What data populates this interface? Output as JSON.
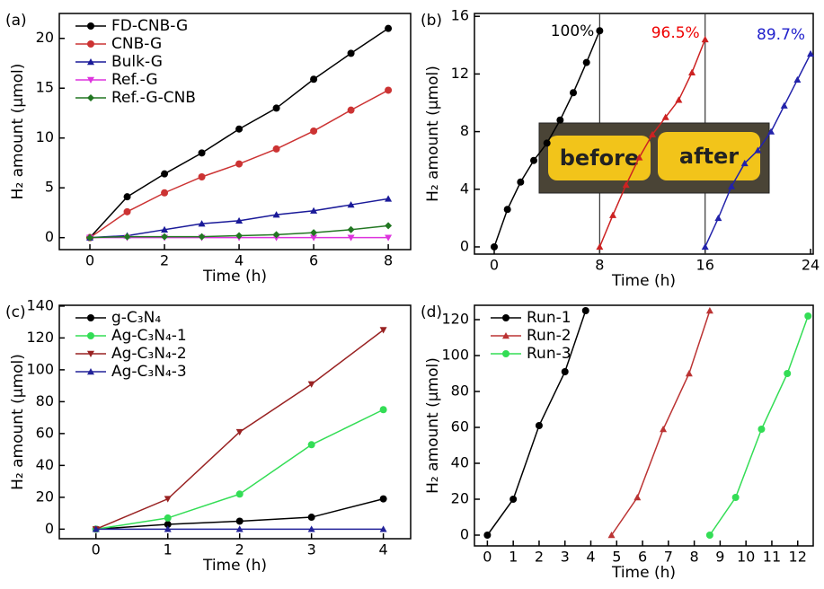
{
  "chart_data": [
    {
      "type": "line",
      "panel_label": "(a)",
      "xlabel": "Time (h)",
      "ylabel": "H₂ amount (μmol)",
      "x": [
        0,
        1,
        2,
        3,
        4,
        5,
        6,
        7,
        8
      ],
      "xlim": [
        -0.82,
        8.6
      ],
      "ylim": [
        -1.2,
        22.5
      ],
      "xticks": [
        0,
        2,
        4,
        6,
        8
      ],
      "yticks": [
        0,
        5,
        10,
        15,
        20
      ],
      "legend": "upper left",
      "series": [
        {
          "name": "FD-CNB-G",
          "color": "#000000",
          "marker": "circle",
          "values": [
            0,
            4.1,
            6.4,
            8.5,
            10.9,
            13,
            15.9,
            18.5,
            21
          ]
        },
        {
          "name": "CNB-G",
          "color": "#cc3333",
          "marker": "circle",
          "values": [
            0,
            2.6,
            4.5,
            6.1,
            7.4,
            8.9,
            10.7,
            12.8,
            14.8
          ]
        },
        {
          "name": "Bulk-G",
          "color": "#1a1a99",
          "marker": "triangle-up",
          "values": [
            0,
            0.2,
            0.8,
            1.4,
            1.7,
            2.3,
            2.7,
            3.3,
            3.9
          ]
        },
        {
          "name": "Ref.-G",
          "color": "#dd33dd",
          "marker": "triangle-down",
          "values": [
            0,
            0,
            0,
            0,
            0,
            0,
            0,
            0,
            0
          ]
        },
        {
          "name": "Ref.-G-CNB",
          "color": "#227722",
          "marker": "diamond",
          "values": [
            0,
            0.1,
            0.1,
            0.1,
            0.2,
            0.3,
            0.5,
            0.8,
            1.2
          ]
        }
      ]
    },
    {
      "type": "line",
      "panel_label": "(b)",
      "xlabel": "Time (h)",
      "ylabel": "H₂ amount (μmol)",
      "xlim": [
        -1.5,
        24.2
      ],
      "ylim": [
        -0.5,
        16.2
      ],
      "xticks": [
        0,
        8,
        16,
        24
      ],
      "yticks": [
        0,
        4,
        8,
        12,
        16
      ],
      "vlines": [
        8,
        16
      ],
      "annotations": [
        {
          "text": "100%",
          "color": "#000000"
        },
        {
          "text": "96.5%",
          "color": "#ee0000"
        },
        {
          "text": "89.7%",
          "color": "#2222cc"
        }
      ],
      "inset_labels": [
        "before",
        "after"
      ],
      "series": [
        {
          "color": "#000000",
          "marker": "circle",
          "x": [
            0,
            1,
            2,
            3,
            4,
            5,
            6,
            7,
            8
          ],
          "values": [
            0,
            2.6,
            4.5,
            6.0,
            7.2,
            8.8,
            10.7,
            12.8,
            15.0
          ]
        },
        {
          "color": "#cc2222",
          "marker": "triangle-up",
          "x": [
            8,
            9,
            10,
            11,
            12,
            13,
            14,
            15,
            16
          ],
          "values": [
            0,
            2.2,
            4.3,
            6.2,
            7.8,
            9.0,
            10.2,
            12.1,
            14.4
          ]
        },
        {
          "color": "#2222aa",
          "marker": "triangle-up",
          "x": [
            16,
            17,
            18,
            19,
            20,
            21,
            22,
            23,
            24
          ],
          "values": [
            0,
            2.0,
            4.2,
            5.8,
            6.7,
            8.0,
            9.8,
            11.6,
            13.4
          ]
        }
      ]
    },
    {
      "type": "line",
      "panel_label": "(c)",
      "xlabel": "Time (h)",
      "ylabel": "H₂ amount (μmol)",
      "x": [
        0,
        1,
        2,
        3,
        4
      ],
      "xlim": [
        -0.51,
        4.38
      ],
      "ylim": [
        -6,
        140.5
      ],
      "xticks": [
        0,
        1,
        2,
        3,
        4
      ],
      "yticks": [
        0,
        20,
        40,
        60,
        80,
        100,
        120,
        140
      ],
      "legend": "upper left",
      "series": [
        {
          "name": "g-C₃N₄",
          "color": "#000000",
          "marker": "circle",
          "values": [
            0,
            3,
            5,
            7.5,
            19
          ]
        },
        {
          "name": "Ag-C₃N₄-1",
          "color": "#33dd55",
          "marker": "circle",
          "values": [
            0,
            7,
            22,
            53,
            75
          ]
        },
        {
          "name": "Ag-C₃N₄-2",
          "color": "#992222",
          "marker": "triangle-down",
          "values": [
            0,
            19,
            61,
            91,
            125
          ]
        },
        {
          "name": "Ag-C₃N₄-3",
          "color": "#222299",
          "marker": "triangle-up",
          "values": [
            0,
            0,
            0,
            0,
            0
          ]
        }
      ]
    },
    {
      "type": "line",
      "panel_label": "(d)",
      "xlabel": "Time (h)",
      "ylabel": "H₂ amount (μmol)",
      "xlim": [
        -0.5,
        12.6
      ],
      "ylim": [
        -6,
        128
      ],
      "xticks": [
        0,
        1,
        2,
        3,
        4,
        5,
        6,
        7,
        8,
        9,
        10,
        11,
        12
      ],
      "yticks": [
        0,
        20,
        40,
        60,
        80,
        100,
        120
      ],
      "legend": "upper left",
      "series": [
        {
          "name": "Run-1",
          "color": "#000000",
          "marker": "circle",
          "x": [
            0,
            1,
            2,
            3,
            3.8
          ],
          "values": [
            0,
            20,
            61,
            91,
            125
          ]
        },
        {
          "name": "Run-2",
          "color": "#bb3333",
          "marker": "triangle-up",
          "x": [
            4.8,
            5.8,
            6.8,
            7.8,
            8.6
          ],
          "values": [
            0,
            21,
            59,
            90,
            125
          ]
        },
        {
          "name": "Run-3",
          "color": "#33dd55",
          "marker": "circle",
          "x": [
            8.6,
            9.6,
            10.6,
            11.6,
            12.4
          ],
          "values": [
            0,
            21,
            59,
            90,
            122
          ]
        }
      ]
    }
  ]
}
